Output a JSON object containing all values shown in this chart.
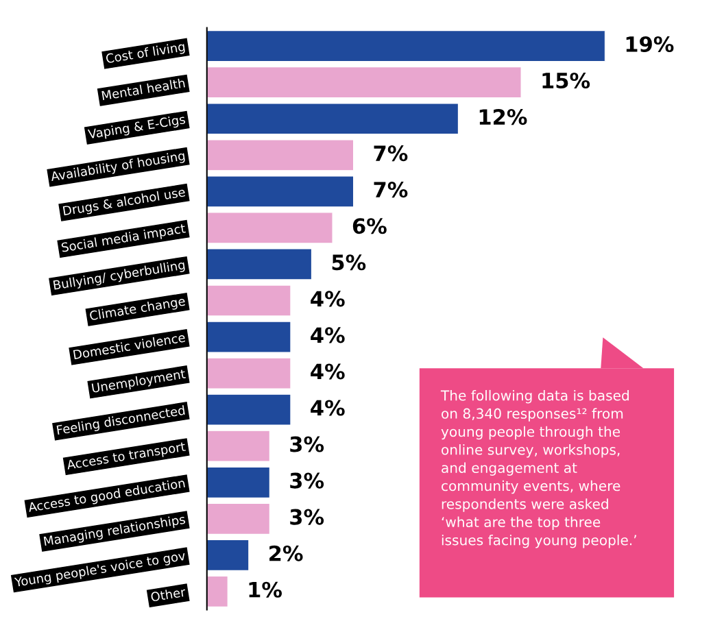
{
  "chart_data": {
    "type": "bar",
    "orientation": "horizontal",
    "categories": [
      "Cost of living",
      "Mental health",
      "Vaping & E-Cigs",
      "Availability of housing",
      "Drugs & alcohol use",
      "Social media impact",
      "Bullying/ cyberbulling",
      "Climate change",
      "Domestic violence",
      "Unemployment",
      "Feeling disconnected",
      "Access to transport",
      "Access to good education",
      "Managing relationships",
      "Young people's voice to gov",
      "Other"
    ],
    "values": [
      19,
      15,
      12,
      7,
      7,
      6,
      5,
      4,
      4,
      4,
      4,
      3,
      3,
      3,
      2,
      1
    ],
    "value_labels": [
      "19%",
      "15%",
      "12%",
      "7%",
      "7%",
      "6%",
      "5%",
      "4%",
      "4%",
      "4%",
      "4%",
      "3%",
      "3%",
      "3%",
      "2%",
      "1%"
    ],
    "colors": [
      "#1f4a9c",
      "#e9a6cf",
      "#1f4a9c",
      "#e9a6cf",
      "#1f4a9c",
      "#e9a6cf",
      "#1f4a9c",
      "#e9a6cf",
      "#1f4a9c",
      "#e9a6cf",
      "#1f4a9c",
      "#e9a6cf",
      "#1f4a9c",
      "#e9a6cf",
      "#1f4a9c",
      "#e9a6cf"
    ],
    "tick_labels": "y",
    "grid": false,
    "legend": false,
    "annotations": [
      "The following data is based\non 8,340 responses¹² from\nyoung people through the\nonline survey, workshops,\nand engagement at\ncommunity events, where\nrespondents were asked\n‘what are the top three\nissues facing young people.’"
    ]
  }
}
